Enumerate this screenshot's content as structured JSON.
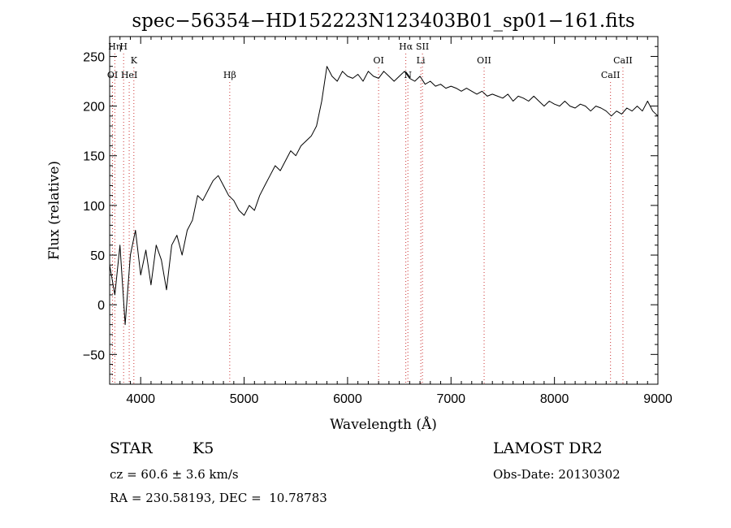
{
  "chart_data": {
    "type": "line",
    "title": "spec−56354−HD152223N123403B01_sp01−161.fits",
    "xlabel": "Wavelength (Å)",
    "ylabel": "Flux (relative)",
    "xlim": [
      3700,
      9000
    ],
    "ylim": [
      -80,
      270
    ],
    "x_ticks": [
      4000,
      5000,
      6000,
      7000,
      8000,
      9000
    ],
    "x_tick_labels": [
      "4000",
      "5000",
      "6000",
      "7000",
      "8000",
      "9000"
    ],
    "y_ticks": [
      -50,
      0,
      50,
      100,
      150,
      200,
      250
    ],
    "y_tick_labels": [
      "−50",
      "0",
      "50",
      "100",
      "150",
      "200",
      "250"
    ],
    "line_color": "#000000",
    "marker_color": "#cc3333",
    "series": [
      {
        "x": [
          3700,
          3750,
          3800,
          3850,
          3900,
          3950,
          4000,
          4050,
          4100,
          4150,
          4200,
          4250,
          4300,
          4350,
          4400,
          4450,
          4500,
          4550,
          4600,
          4650,
          4700,
          4750,
          4800,
          4850,
          4900,
          4950,
          5000,
          5050,
          5100,
          5150,
          5200,
          5250,
          5300,
          5350,
          5400,
          5450,
          5500,
          5550,
          5600,
          5650,
          5700,
          5750,
          5800,
          5850,
          5900,
          5950,
          6000,
          6050,
          6100,
          6150,
          6200,
          6250,
          6300,
          6350,
          6400,
          6450,
          6500,
          6550,
          6600,
          6650,
          6700,
          6750,
          6800,
          6850,
          6900,
          6950,
          7000,
          7050,
          7100,
          7150,
          7200,
          7250,
          7300,
          7350,
          7400,
          7450,
          7500,
          7550,
          7600,
          7650,
          7700,
          7750,
          7800,
          7850,
          7900,
          7950,
          8000,
          8050,
          8100,
          8150,
          8200,
          8250,
          8300,
          8350,
          8400,
          8450,
          8500,
          8550,
          8600,
          8650,
          8700,
          8750,
          8800,
          8850,
          8900,
          8950,
          9000
        ],
        "y": [
          40,
          10,
          60,
          -20,
          50,
          75,
          30,
          55,
          20,
          60,
          45,
          15,
          60,
          70,
          50,
          75,
          85,
          110,
          105,
          115,
          125,
          130,
          120,
          110,
          105,
          95,
          90,
          100,
          95,
          110,
          120,
          130,
          140,
          135,
          145,
          155,
          150,
          160,
          165,
          170,
          180,
          205,
          240,
          230,
          225,
          235,
          230,
          228,
          232,
          225,
          235,
          230,
          228,
          235,
          230,
          225,
          230,
          235,
          228,
          225,
          230,
          222,
          225,
          220,
          222,
          218,
          220,
          218,
          215,
          218,
          215,
          212,
          215,
          210,
          212,
          210,
          208,
          212,
          205,
          210,
          208,
          205,
          210,
          205,
          200,
          205,
          202,
          200,
          205,
          200,
          198,
          202,
          200,
          195,
          200,
          198,
          195,
          190,
          195,
          192,
          198,
          195,
          200,
          195,
          205,
          195,
          190
        ]
      }
    ],
    "line_markers": [
      {
        "label": "OI",
        "x": 3728,
        "row": 3
      },
      {
        "label": "Hη",
        "x": 3750,
        "row": 1
      },
      {
        "label": "H",
        "x": 3835,
        "row": 1
      },
      {
        "label": "K",
        "x": 3934,
        "row": 2
      },
      {
        "label": "HeI",
        "x": 3889,
        "row": 3
      },
      {
        "label": "Hβ",
        "x": 4861,
        "row": 3
      },
      {
        "label": "OI",
        "x": 6300,
        "row": 2
      },
      {
        "label": "Hα",
        "x": 6563,
        "row": 1
      },
      {
        "label": "SII",
        "x": 6724,
        "row": 1
      },
      {
        "label": "N",
        "x": 6583,
        "row": 3
      },
      {
        "label": "Li",
        "x": 6708,
        "row": 2
      },
      {
        "label": "OII",
        "x": 7320,
        "row": 2
      },
      {
        "label": "CaII",
        "x": 8542,
        "row": 3
      },
      {
        "label": "CaII",
        "x": 8662,
        "row": 2
      }
    ]
  },
  "info": {
    "object_class": "STAR",
    "subclass": "K5",
    "survey": "LAMOST DR2",
    "cz": "cz = 60.6 ± 3.6 km/s",
    "obs_date": "Obs-Date: 20130302",
    "coords": "RA = 230.58193, DEC =  10.78783"
  }
}
